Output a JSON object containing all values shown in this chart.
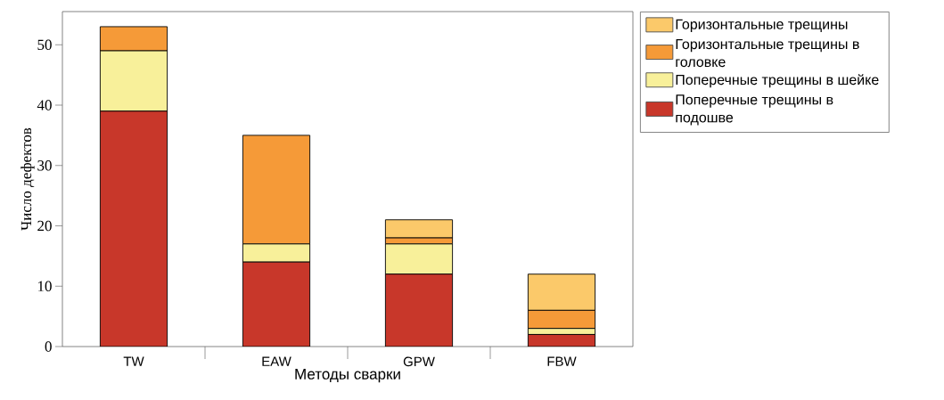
{
  "chart_data": {
    "type": "bar",
    "stacked": true,
    "xlabel": "Методы сварки",
    "ylabel": "Число дефектов",
    "categories": [
      "TW",
      "EAW",
      "GPW",
      "FBW"
    ],
    "series": [
      {
        "name": "Поперечные трещины в подошве",
        "color": "#c8372a",
        "values": [
          39,
          14,
          12,
          2
        ]
      },
      {
        "name": "Поперечные трещины в шейке",
        "color": "#f8f09a",
        "values": [
          10,
          3,
          5,
          1
        ]
      },
      {
        "name": "Горизонтальные трещины в головке",
        "color": "#f59a38",
        "values": [
          4,
          18,
          1,
          3
        ]
      },
      {
        "name": "Горизонтальные трещины",
        "color": "#fbc96a",
        "values": [
          0,
          0,
          3,
          6
        ]
      }
    ],
    "ylim": [
      0,
      55.5
    ],
    "yticks": [
      0,
      10,
      20,
      30,
      40,
      50
    ],
    "grid": false,
    "legend": "right"
  }
}
